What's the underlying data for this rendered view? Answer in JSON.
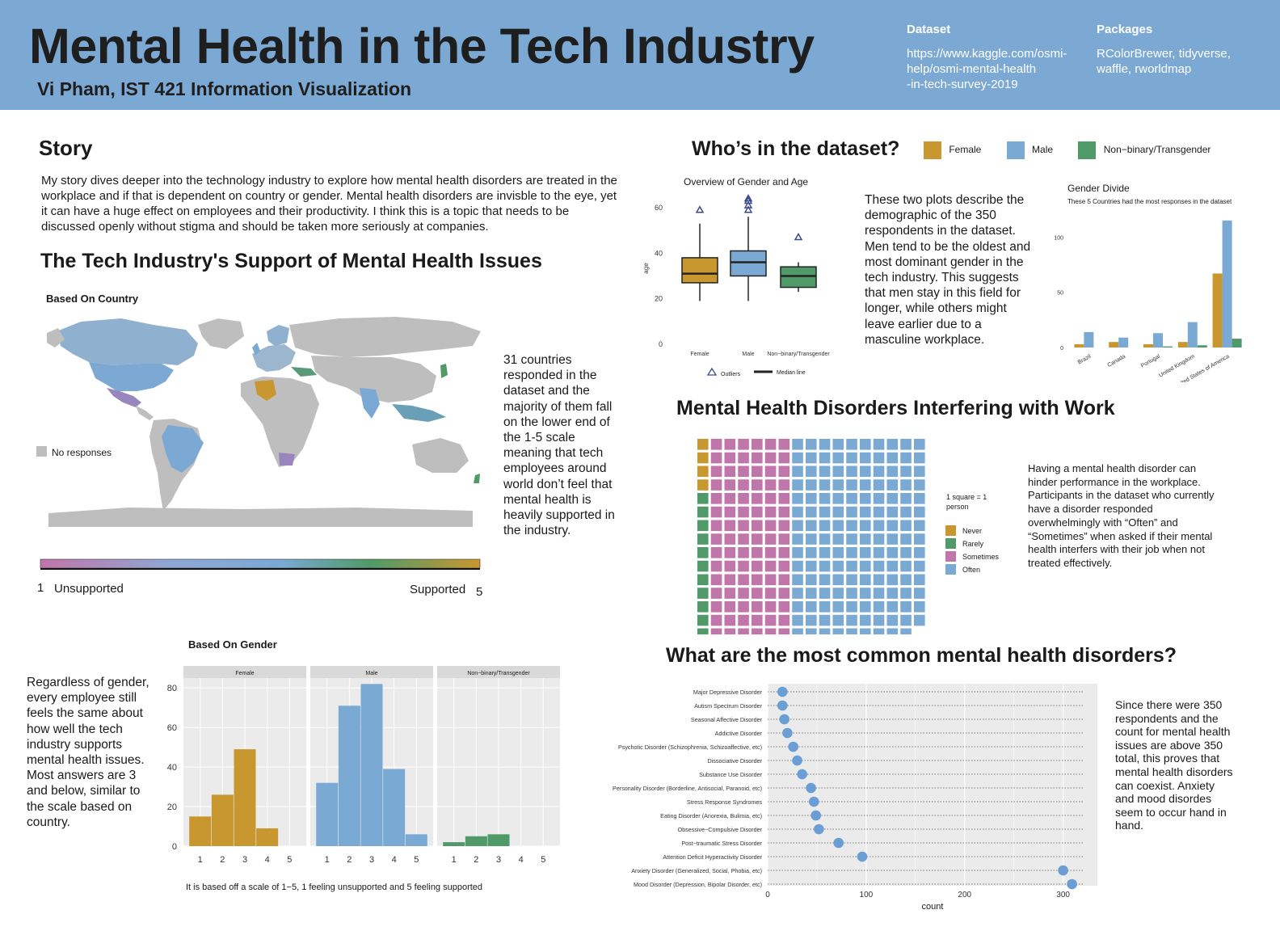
{
  "header": {
    "title": "Mental Health in the Tech Industry",
    "subtitle": "Vi Pham, IST 421 Information Visualization",
    "dataset_label": "Dataset",
    "dataset_url": "https://www.kaggle.com/osmi-help/osmi-mental-health -in-tech-survey-2019",
    "dataset_line1": "https://www.kaggle.com/osmi-",
    "dataset_line2": "help/osmi-mental-health",
    "dataset_line3": "-in-tech-survey-2019",
    "packages_label": "Packages",
    "packages_line1": "RColorBrewer, tidyverse,",
    "packages_line2": "waffle, rworldmap"
  },
  "colors": {
    "header_bg": "#7ba9d3",
    "female": "#c9972f",
    "male": "#7aa9d4",
    "nonbinary": "#4f9a68",
    "sometimes": "#c076a9",
    "panel_bg": "#ebebeb",
    "no_response": "#bebebe"
  },
  "story": {
    "heading": "Story",
    "text": "My story dives deeper into the technology industry to explore how mental health disorders are treated in the workplace and if that is dependent on country or gender. Mental health disorders are invisble to the eye, yet it can have a huge effect on employees and their productivity. I think this is a topic that needs to be discussed openly without stigma and should be taken more seriously at companies."
  },
  "support": {
    "heading": "The Tech Industry's Support of Mental Health Issues",
    "map_title": "Based On Country",
    "no_responses": "No responses",
    "scale_min_num": "1",
    "scale_min_label": "Unsupported",
    "scale_max_label": "Supported",
    "scale_max_num": "5",
    "country_text": "31 countries responded in the dataset and the majority of them fall on the lower end of the 1-5 scale meaning that tech employees around world don’t feel that mental health is heavily supported in the industry.",
    "gender_title": "Based On Gender",
    "gender_caption": "It is based off a scale of 1−5, 1 feeling unsupported and 5 feeling supported",
    "gender_text": "Regardless of gender, every employee still feels the same about how well the tech industry supports mental health issues. Most answers are 3 and below, similar to the scale based on country."
  },
  "dataset_section": {
    "heading": "Who’s in the dataset?",
    "legend": [
      "Female",
      "Male",
      "Non−binary/Transgender"
    ],
    "boxplot_title": "Overview of Gender and Age",
    "boxplot_ylabel": "age",
    "boxplot_legend_outliers": "Outliers",
    "boxplot_legend_median": "Median line",
    "text": "These two plots describe the demographic of the 350 respondents in the dataset. Men tend to be the oldest and most dominant gender in the tech industry. This suggests that men stay in this field for longer, while others might leave earlier due to a masculine workplace.",
    "divide_title": "Gender Divide",
    "divide_subtitle": "These 5 Countries had the most responses in the dataset"
  },
  "waffle_section": {
    "heading": "Mental Health Disorders Interfering with Work",
    "key_label": "1 square = 1 person",
    "legend": [
      "Never",
      "Rarely",
      "Sometimes",
      "Often"
    ],
    "text": "Having a mental health disorder can hinder performance in the workplace. Participants in the dataset who currently have a disorder responded overwhelmingly with “Often” and “Sometimes” when asked if their mental health interfers with their job when not treated effectively."
  },
  "disorders_section": {
    "heading": "What are the most common mental health disorders?",
    "xlabel": "count",
    "text": "Since there were 350 respondents and the count for mental health issues are above 350 total, this proves that mental health disorders can coexist. Anxiety and mood disordes seem to occur hand in hand."
  },
  "chart_data": [
    {
      "id": "support-by-country",
      "type": "map",
      "title": "Based On Country",
      "legend": "No responses",
      "scale": {
        "min": 1,
        "max": 5,
        "min_label": "Unsupported",
        "max_label": "Supported"
      }
    },
    {
      "id": "support-by-gender",
      "type": "bar",
      "title": "Based On Gender",
      "facets": [
        "Female",
        "Male",
        "Non−binary/Transgender"
      ],
      "categories": [
        "1",
        "2",
        "3",
        "4",
        "5"
      ],
      "series": [
        {
          "name": "Female",
          "values": [
            15,
            26,
            49,
            9,
            0
          ]
        },
        {
          "name": "Male",
          "values": [
            32,
            71,
            82,
            39,
            6
          ]
        },
        {
          "name": "Non−binary/Transgender",
          "values": [
            2,
            5,
            6,
            0,
            0
          ]
        }
      ],
      "ylim": [
        0,
        85
      ],
      "yticks": [
        0,
        20,
        40,
        60,
        80
      ],
      "caption": "It is based off a scale of 1−5, 1 feeling unsupported and 5 feeling supported"
    },
    {
      "id": "gender-age-boxplot",
      "type": "boxplot",
      "title": "Overview of Gender and Age",
      "ylabel": "age",
      "categories": [
        "Female",
        "Male",
        "Non−binary/Transgender"
      ],
      "boxes": [
        {
          "name": "Female",
          "min": 19,
          "q1": 27,
          "median": 31,
          "q3": 38,
          "max": 53,
          "outliers": [
            59
          ]
        },
        {
          "name": "Male",
          "min": 19,
          "q1": 30,
          "median": 36,
          "q3": 41,
          "max": 56,
          "outliers": [
            59,
            61,
            63,
            64
          ]
        },
        {
          "name": "Non−binary/Transgender",
          "min": 23,
          "q1": 25,
          "median": 30,
          "q3": 34,
          "max": 36,
          "outliers": [
            47
          ]
        }
      ],
      "ylim": [
        0,
        66
      ],
      "yticks": [
        0,
        20,
        40,
        60
      ]
    },
    {
      "id": "gender-divide",
      "type": "bar",
      "title": "Gender Divide",
      "subtitle": "These 5 Countries had the most responses in the dataset",
      "categories": [
        "Brazil",
        "Canada",
        "Portugal",
        "United Kingdom",
        "United States of America"
      ],
      "series": [
        {
          "name": "Female",
          "values": [
            3,
            5,
            3,
            5,
            67
          ]
        },
        {
          "name": "Male",
          "values": [
            14,
            9,
            13,
            23,
            115
          ]
        },
        {
          "name": "Non−binary/Transgender",
          "values": [
            0,
            0,
            1,
            2,
            8
          ]
        }
      ],
      "ylim": [
        0,
        120
      ],
      "yticks": [
        0,
        50,
        100
      ]
    },
    {
      "id": "interference-waffle",
      "type": "waffle",
      "unit": "1 square = 1 person",
      "series": [
        {
          "name": "Never",
          "value": 4
        },
        {
          "name": "Rarely",
          "value": 11
        },
        {
          "name": "Sometimes",
          "value": 90
        },
        {
          "name": "Often",
          "value": 149
        }
      ]
    },
    {
      "id": "common-disorders",
      "type": "dot",
      "xlabel": "count",
      "categories": [
        "Major Depressive Disorder",
        "Autism Spectrum Disorder",
        "Seasonal Affective Disorder",
        "Addictive Disorder",
        "Psychotic Disorder (Schizophrenia, Schizoaffective, etc)",
        "Dissociative Disorder",
        "Substance Use Disorder",
        "Personality Disorder (Borderline, Antisocial, Paranoid, etc)",
        "Stress Response Syndromes",
        "Eating Disorder (Anorexia, Bulimia, etc)",
        "Obsessive−Compulsive Disorder",
        "Post−traumatic Stress Disorder",
        "Attention Deficit Hyperactivity Disorder",
        "Anxiety Disorder (Generalized, Social, Phobia, etc)",
        "Mood Disorder (Depression, Bipolar Disorder, etc)"
      ],
      "values": [
        15,
        15,
        17,
        20,
        26,
        30,
        35,
        44,
        47,
        49,
        52,
        72,
        96,
        300,
        309
      ],
      "xlim": [
        0,
        320
      ],
      "xticks": [
        0,
        100,
        200,
        300
      ]
    }
  ]
}
